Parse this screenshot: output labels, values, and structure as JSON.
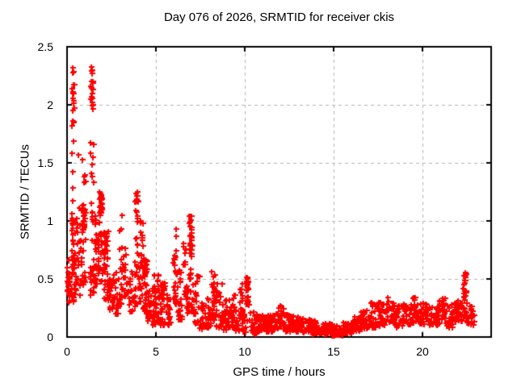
{
  "chart_data": {
    "type": "scatter",
    "title": "Day 076 of 2026, SRMTID for receiver ckis",
    "xlabel": "GPS time / hours",
    "ylabel": "SRMTID / TECUs",
    "xlim": [
      0,
      23.86
    ],
    "ylim": [
      0,
      2.5
    ],
    "xticks": [
      0,
      5,
      10,
      15,
      20
    ],
    "yticks": [
      0,
      0.5,
      1,
      1.5,
      2,
      2.5
    ],
    "grid": "dashed",
    "legend": "none",
    "marker": {
      "shape": "plus-cross",
      "color": "#ff0000",
      "size": 7,
      "stroke": 2
    },
    "axis_color": "#000000",
    "grid_color": "#b3b3b3",
    "background": "#ffffff",
    "seed": 76,
    "cluster_format": "[t_start_hours, t_end_hours, y_min_TECU, y_max_TECU, n_points, bottom_bias_exponent]",
    "clusters": [
      [
        0.0,
        0.15,
        0.3,
        0.68,
        22,
        1.2
      ],
      [
        0.02,
        0.12,
        0.38,
        0.52,
        8,
        1
      ],
      [
        0.25,
        0.42,
        0.3,
        2.3,
        34,
        1.6
      ],
      [
        0.27,
        0.4,
        0.55,
        1.05,
        18,
        1
      ],
      [
        0.28,
        0.38,
        1.85,
        2.32,
        8,
        1
      ],
      [
        0.45,
        0.75,
        0.35,
        1.12,
        28,
        1.3
      ],
      [
        0.6,
        1.1,
        1.2,
        1.62,
        6,
        1
      ],
      [
        0.75,
        1.05,
        0.45,
        1.15,
        32,
        1.1
      ],
      [
        0.85,
        1.02,
        0.92,
        1.1,
        14,
        1
      ],
      [
        1.3,
        1.5,
        0.35,
        2.33,
        38,
        1.5
      ],
      [
        1.33,
        1.46,
        1.95,
        2.15,
        9,
        1
      ],
      [
        1.36,
        1.45,
        2.18,
        2.33,
        7,
        1
      ],
      [
        1.55,
        1.8,
        0.45,
        1.05,
        28,
        1.2
      ],
      [
        1.8,
        2.02,
        0.48,
        1.25,
        28,
        1.1
      ],
      [
        1.82,
        1.96,
        1.05,
        1.25,
        11,
        1
      ],
      [
        2.05,
        2.35,
        0.3,
        0.95,
        32,
        1.3
      ],
      [
        2.1,
        2.26,
        0.7,
        0.9,
        12,
        1
      ],
      [
        2.35,
        2.6,
        0.22,
        0.62,
        22,
        1.5
      ],
      [
        2.6,
        2.92,
        0.2,
        0.6,
        20,
        1.7
      ],
      [
        2.95,
        3.12,
        0.28,
        1.1,
        18,
        1.4
      ],
      [
        3.15,
        3.42,
        0.35,
        0.8,
        16,
        1.2
      ],
      [
        3.45,
        3.68,
        0.22,
        0.62,
        14,
        1.5
      ],
      [
        3.7,
        3.82,
        0.25,
        0.55,
        9,
        1.3
      ],
      [
        3.82,
        4.0,
        0.28,
        1.27,
        26,
        1.2
      ],
      [
        3.86,
        3.96,
        0.98,
        1.27,
        7,
        0.8
      ],
      [
        4.05,
        4.26,
        0.3,
        1.05,
        26,
        1.4
      ],
      [
        4.26,
        4.52,
        0.2,
        0.68,
        28,
        1.5
      ],
      [
        4.31,
        4.43,
        0.52,
        0.66,
        10,
        1
      ],
      [
        4.52,
        4.76,
        0.12,
        0.4,
        20,
        1.4
      ],
      [
        4.76,
        5.0,
        0.1,
        0.44,
        20,
        1.6
      ],
      [
        4.8,
        4.96,
        0.4,
        0.56,
        4,
        1
      ],
      [
        5.0,
        5.22,
        0.12,
        0.55,
        18,
        1.5
      ],
      [
        5.25,
        5.56,
        0.1,
        0.5,
        22,
        1.6
      ],
      [
        5.36,
        5.52,
        0.3,
        0.46,
        8,
        1
      ],
      [
        5.56,
        5.86,
        0.08,
        0.46,
        20,
        1.7
      ],
      [
        5.95,
        6.18,
        0.28,
        0.97,
        24,
        1.2
      ],
      [
        6.2,
        6.5,
        0.15,
        0.6,
        22,
        1.6
      ],
      [
        6.52,
        6.72,
        0.35,
        0.82,
        14,
        1.1
      ],
      [
        6.72,
        6.86,
        0.2,
        0.55,
        11,
        1.4
      ],
      [
        6.86,
        7.04,
        0.2,
        1.08,
        30,
        1.3
      ],
      [
        6.9,
        7.02,
        0.68,
        0.88,
        13,
        1
      ],
      [
        7.06,
        7.46,
        0.12,
        0.6,
        28,
        1.8
      ],
      [
        7.46,
        7.86,
        0.07,
        0.32,
        24,
        1.5
      ],
      [
        7.86,
        8.1,
        0.08,
        0.36,
        18,
        1.5
      ],
      [
        8.1,
        8.34,
        0.14,
        0.57,
        22,
        1.4
      ],
      [
        8.16,
        8.3,
        0.26,
        0.46,
        9,
        1
      ],
      [
        8.35,
        8.72,
        0.08,
        0.46,
        24,
        1.8
      ],
      [
        8.72,
        9.1,
        0.06,
        0.32,
        25,
        1.6
      ],
      [
        9.1,
        9.46,
        0.08,
        0.36,
        22,
        1.6
      ],
      [
        9.5,
        9.72,
        0.05,
        0.24,
        15,
        1.4
      ],
      [
        9.72,
        9.88,
        0.12,
        0.46,
        16,
        1.3
      ],
      [
        9.88,
        10.06,
        0.04,
        0.2,
        13,
        1.3
      ],
      [
        10.06,
        10.22,
        0.08,
        0.52,
        18,
        1.0
      ],
      [
        10.09,
        10.19,
        0.4,
        0.52,
        9,
        1
      ],
      [
        10.25,
        10.72,
        0.03,
        0.22,
        28,
        1.6
      ],
      [
        10.5,
        10.66,
        0.0,
        0.06,
        4,
        1
      ],
      [
        10.72,
        11.22,
        0.05,
        0.2,
        30,
        1.5
      ],
      [
        11.22,
        11.62,
        0.05,
        0.19,
        26,
        1.4
      ],
      [
        11.62,
        12.22,
        0.07,
        0.28,
        38,
        1.5
      ],
      [
        12.22,
        12.72,
        0.05,
        0.21,
        30,
        1.5
      ],
      [
        12.72,
        13.22,
        0.05,
        0.18,
        30,
        1.5
      ],
      [
        13.22,
        13.82,
        0.04,
        0.16,
        34,
        1.4
      ],
      [
        13.82,
        14.42,
        0.03,
        0.14,
        34,
        1.4
      ],
      [
        14.42,
        14.92,
        0.03,
        0.12,
        28,
        1.3
      ],
      [
        14.92,
        15.52,
        0.01,
        0.1,
        32,
        1.3
      ],
      [
        15.52,
        16.02,
        0.03,
        0.13,
        28,
        1.3
      ],
      [
        16.02,
        16.52,
        0.05,
        0.18,
        28,
        1.4
      ],
      [
        16.52,
        17.02,
        0.07,
        0.25,
        28,
        1.4
      ],
      [
        17.02,
        17.42,
        0.08,
        0.3,
        24,
        1.3
      ],
      [
        17.42,
        17.92,
        0.1,
        0.3,
        28,
        1.2
      ],
      [
        17.92,
        18.42,
        0.12,
        0.34,
        30,
        1.2
      ],
      [
        18.42,
        18.92,
        0.08,
        0.28,
        28,
        1.3
      ],
      [
        18.92,
        19.42,
        0.1,
        0.3,
        28,
        1.2
      ],
      [
        19.42,
        19.92,
        0.12,
        0.35,
        30,
        1.2
      ],
      [
        19.92,
        20.42,
        0.1,
        0.3,
        30,
        1.3
      ],
      [
        20.42,
        20.92,
        0.1,
        0.28,
        28,
        1.3
      ],
      [
        20.92,
        21.32,
        0.12,
        0.35,
        26,
        1.2
      ],
      [
        21.32,
        21.82,
        0.08,
        0.28,
        28,
        1.4
      ],
      [
        21.82,
        22.22,
        0.12,
        0.33,
        26,
        1.2
      ],
      [
        22.26,
        22.46,
        0.15,
        0.58,
        20,
        1.0
      ],
      [
        22.3,
        22.43,
        0.45,
        0.57,
        8,
        1
      ],
      [
        22.46,
        22.92,
        0.1,
        0.3,
        24,
        1.4
      ]
    ]
  }
}
